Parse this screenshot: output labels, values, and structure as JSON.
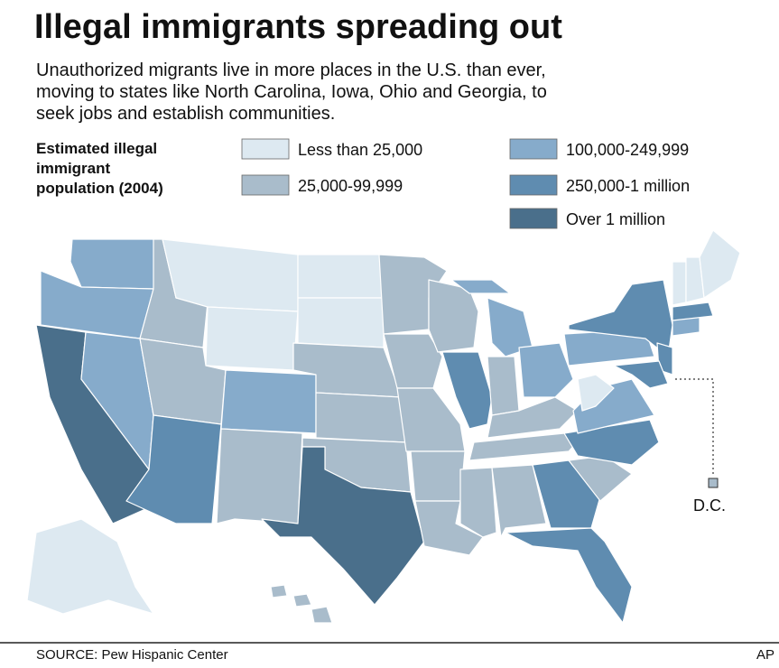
{
  "title": "Illegal immigrants spreading out",
  "subtitle": [
    "Unauthorized migrants live in more places in the U.S. than ever,",
    "moving to states like North Carolina, Iowa, Ohio and Georgia, to",
    "seek jobs and establish communities."
  ],
  "legend": {
    "title": [
      "Estimated illegal",
      "immigrant",
      "population (2004)"
    ],
    "items": [
      {
        "label": "Less than 25,000",
        "color": "#dde9f1"
      },
      {
        "label": "25,000-99,999",
        "color": "#a9bccb"
      },
      {
        "label": "100,000-249,999",
        "color": "#86abcb"
      },
      {
        "label": "250,000-1 million",
        "color": "#5f8cb0"
      },
      {
        "label": "Over 1 million",
        "color": "#4a6f8b"
      }
    ]
  },
  "dc_label": "D.C.",
  "source": "SOURCE: Pew Hispanic Center",
  "credit": "AP"
}
